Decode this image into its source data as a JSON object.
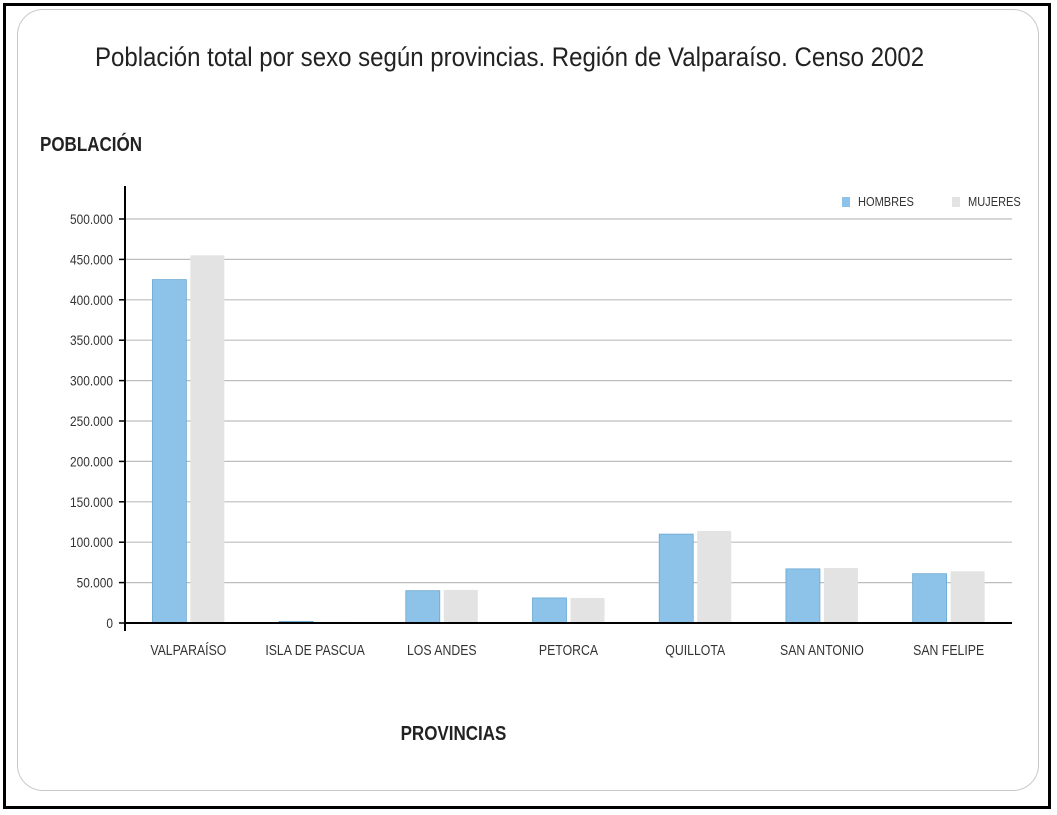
{
  "chart_data": {
    "type": "bar",
    "title": "Población total por sexo según provincias. Región de Valparaíso. Censo 2002",
    "ylabel": "POBLACIÓN",
    "xlabel": "PROVINCIAS",
    "categories": [
      "VALPARAÍSO",
      "ISLA DE PASCUA",
      "LOS ANDES",
      "PETORCA",
      "QUILLOTA",
      "SAN ANTONIO",
      "SAN FELIPE"
    ],
    "series": [
      {
        "name": "HOMBRES",
        "color": "#8dc3e8",
        "values": [
          425000,
          2000,
          40000,
          31000,
          110000,
          67000,
          61000
        ]
      },
      {
        "name": "MUJERES",
        "color": "#e3e3e3",
        "values": [
          455000,
          1500,
          41000,
          31000,
          114000,
          68000,
          64000
        ]
      }
    ],
    "ylim": [
      0,
      500000
    ],
    "yticks": [
      0,
      50000,
      100000,
      150000,
      200000,
      250000,
      300000,
      350000,
      400000,
      450000,
      500000
    ],
    "ytick_labels": [
      "0",
      "50.000",
      "100.000",
      "150.000",
      "200.000",
      "250.000",
      "300.000",
      "350.000",
      "400.000",
      "450.000",
      "500.000"
    ],
    "grid": true,
    "legend_position": "top-right"
  }
}
